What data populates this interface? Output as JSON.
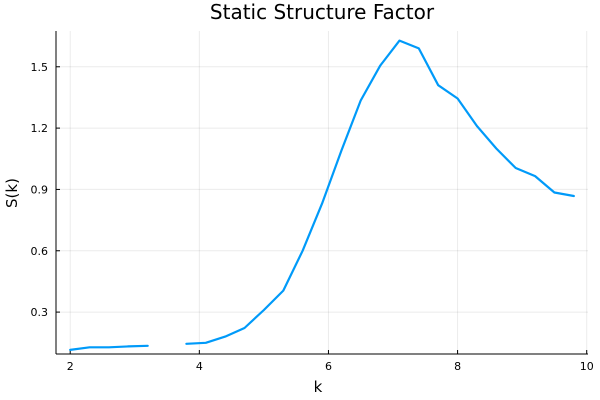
{
  "chart_data": {
    "type": "line",
    "title": "Static Structure Factor",
    "xlabel": "k",
    "ylabel": "S(k)",
    "xlim": [
      1.78,
      10.02
    ],
    "ylim": [
      0.095,
      1.675
    ],
    "xticks": [
      2,
      4,
      6,
      8,
      10
    ],
    "yticks": [
      0.3,
      0.6,
      0.9,
      1.2,
      1.5
    ],
    "grid": true,
    "legend": "none",
    "series_color": "#009AF9",
    "series": [
      {
        "segments": [
          [
            {
              "x": 2.0,
              "y": 0.115
            },
            {
              "x": 2.3,
              "y": 0.128
            },
            {
              "x": 2.6,
              "y": 0.128
            },
            {
              "x": 2.9,
              "y": 0.132
            },
            {
              "x": 3.2,
              "y": 0.135
            }
          ],
          [
            {
              "x": 3.8,
              "y": 0.145
            },
            {
              "x": 4.1,
              "y": 0.15
            },
            {
              "x": 4.4,
              "y": 0.18
            },
            {
              "x": 4.7,
              "y": 0.222
            },
            {
              "x": 5.0,
              "y": 0.31
            },
            {
              "x": 5.3,
              "y": 0.405
            },
            {
              "x": 5.6,
              "y": 0.6
            },
            {
              "x": 5.9,
              "y": 0.83
            },
            {
              "x": 6.2,
              "y": 1.09
            },
            {
              "x": 6.5,
              "y": 1.335
            },
            {
              "x": 6.8,
              "y": 1.505
            },
            {
              "x": 7.1,
              "y": 1.628
            },
            {
              "x": 7.4,
              "y": 1.59
            },
            {
              "x": 7.7,
              "y": 1.41
            },
            {
              "x": 8.0,
              "y": 1.345
            },
            {
              "x": 8.3,
              "y": 1.21
            },
            {
              "x": 8.6,
              "y": 1.1
            },
            {
              "x": 8.9,
              "y": 1.005
            },
            {
              "x": 9.2,
              "y": 0.965
            },
            {
              "x": 9.5,
              "y": 0.885
            },
            {
              "x": 9.8,
              "y": 0.868
            }
          ]
        ]
      }
    ]
  }
}
